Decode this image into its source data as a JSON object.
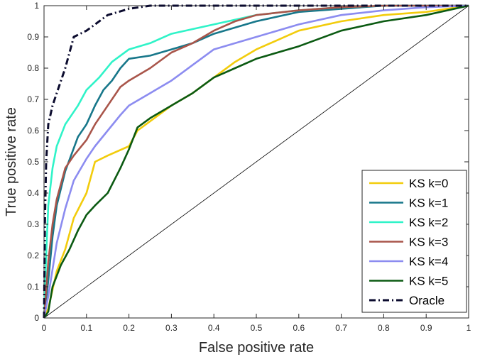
{
  "chart_data": {
    "type": "line",
    "title": "",
    "xlabel": "False positive rate",
    "ylabel": "True positive rate",
    "xlim": [
      0,
      1
    ],
    "ylim": [
      0,
      1
    ],
    "xticks": [
      "0",
      "0.1",
      "0.2",
      "0.3",
      "0.4",
      "0.5",
      "0.6",
      "0.7",
      "0.8",
      "0.9",
      "1"
    ],
    "yticks": [
      "0",
      "0.1",
      "0.2",
      "0.3",
      "0.4",
      "0.5",
      "0.6",
      "0.7",
      "0.8",
      "0.9",
      "1"
    ],
    "grid": false,
    "legend_position": "bottom-right",
    "diagonal_reference_line": true,
    "series": [
      {
        "name": "KS k=0",
        "color": "#f2cc0c",
        "dash": "solid",
        "x": [
          0,
          0.01,
          0.03,
          0.05,
          0.07,
          0.1,
          0.12,
          0.15,
          0.2,
          0.22,
          0.25,
          0.3,
          0.35,
          0.4,
          0.45,
          0.5,
          0.55,
          0.6,
          0.7,
          0.8,
          0.9,
          1.0
        ],
        "y": [
          0,
          0.03,
          0.15,
          0.22,
          0.32,
          0.4,
          0.5,
          0.52,
          0.55,
          0.6,
          0.63,
          0.68,
          0.72,
          0.77,
          0.82,
          0.86,
          0.89,
          0.92,
          0.95,
          0.97,
          0.98,
          1.0
        ]
      },
      {
        "name": "KS k=1",
        "color": "#17778a",
        "dash": "solid",
        "x": [
          0,
          0.01,
          0.02,
          0.03,
          0.05,
          0.08,
          0.1,
          0.12,
          0.14,
          0.16,
          0.18,
          0.2,
          0.25,
          0.3,
          0.35,
          0.4,
          0.5,
          0.6,
          0.7,
          0.8,
          0.9,
          1.0
        ],
        "y": [
          0,
          0.12,
          0.26,
          0.36,
          0.47,
          0.58,
          0.62,
          0.68,
          0.73,
          0.76,
          0.8,
          0.83,
          0.84,
          0.86,
          0.88,
          0.91,
          0.95,
          0.98,
          0.99,
          1.0,
          1.0,
          1.0
        ]
      },
      {
        "name": "KS k=2",
        "color": "#2ff3c8",
        "dash": "solid",
        "x": [
          0,
          0.005,
          0.01,
          0.02,
          0.03,
          0.05,
          0.08,
          0.1,
          0.13,
          0.16,
          0.2,
          0.25,
          0.3,
          0.4,
          0.5,
          0.6,
          0.7,
          0.8,
          0.9,
          1.0
        ],
        "y": [
          0,
          0.2,
          0.36,
          0.48,
          0.55,
          0.62,
          0.68,
          0.73,
          0.77,
          0.82,
          0.86,
          0.88,
          0.91,
          0.94,
          0.97,
          0.985,
          0.995,
          1.0,
          1.0,
          1.0
        ]
      },
      {
        "name": "KS k=3",
        "color": "#a9554a",
        "dash": "solid",
        "x": [
          0,
          0.01,
          0.02,
          0.03,
          0.05,
          0.07,
          0.1,
          0.12,
          0.15,
          0.18,
          0.2,
          0.25,
          0.3,
          0.35,
          0.4,
          0.45,
          0.5,
          0.6,
          0.7,
          0.8,
          0.9,
          1.0
        ],
        "y": [
          0,
          0.18,
          0.3,
          0.38,
          0.48,
          0.52,
          0.57,
          0.62,
          0.68,
          0.74,
          0.76,
          0.8,
          0.85,
          0.88,
          0.92,
          0.95,
          0.97,
          0.985,
          0.995,
          1.0,
          1.0,
          1.0
        ]
      },
      {
        "name": "KS k=4",
        "color": "#8c8cf0",
        "dash": "solid",
        "x": [
          0,
          0.01,
          0.03,
          0.05,
          0.07,
          0.1,
          0.12,
          0.15,
          0.18,
          0.2,
          0.25,
          0.3,
          0.35,
          0.4,
          0.5,
          0.6,
          0.7,
          0.8,
          0.9,
          1.0
        ],
        "y": [
          0,
          0.07,
          0.24,
          0.35,
          0.44,
          0.51,
          0.55,
          0.6,
          0.65,
          0.68,
          0.72,
          0.76,
          0.81,
          0.86,
          0.9,
          0.94,
          0.97,
          0.985,
          0.995,
          1.0
        ]
      },
      {
        "name": "KS k=5",
        "color": "#0b5a12",
        "dash": "solid",
        "x": [
          0,
          0.01,
          0.02,
          0.04,
          0.06,
          0.08,
          0.1,
          0.12,
          0.15,
          0.18,
          0.2,
          0.22,
          0.25,
          0.3,
          0.35,
          0.4,
          0.45,
          0.5,
          0.6,
          0.7,
          0.8,
          0.9,
          1.0
        ],
        "y": [
          0,
          0.02,
          0.1,
          0.17,
          0.22,
          0.28,
          0.33,
          0.36,
          0.4,
          0.48,
          0.54,
          0.61,
          0.64,
          0.68,
          0.72,
          0.77,
          0.8,
          0.83,
          0.87,
          0.92,
          0.95,
          0.97,
          1.0
        ]
      },
      {
        "name": "Oracle",
        "color": "#0b0b2e",
        "dash": "dashdot",
        "x": [
          0,
          0.002,
          0.005,
          0.01,
          0.02,
          0.03,
          0.05,
          0.07,
          0.1,
          0.12,
          0.15,
          0.2,
          0.25,
          0.3,
          0.5,
          1.0
        ],
        "y": [
          0,
          0.3,
          0.5,
          0.62,
          0.68,
          0.72,
          0.8,
          0.9,
          0.92,
          0.94,
          0.97,
          0.99,
          1.0,
          1.0,
          1.0,
          1.0
        ]
      }
    ]
  }
}
